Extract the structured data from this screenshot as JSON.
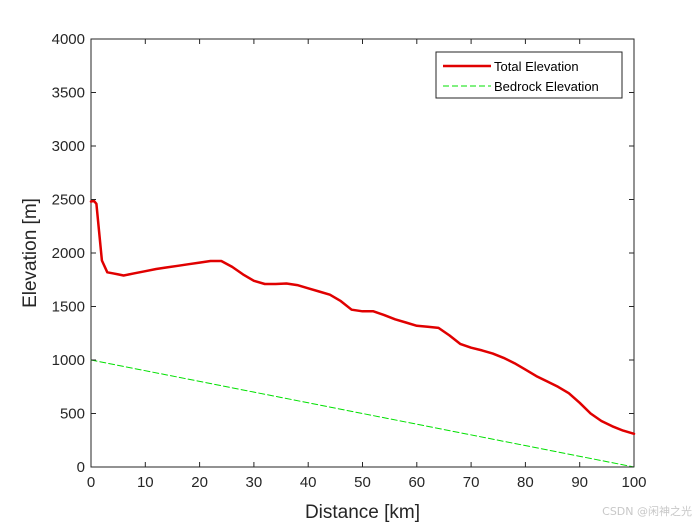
{
  "chart_data": {
    "type": "line",
    "title": "",
    "xlabel": "Distance [km]",
    "ylabel": "Elevation [m]",
    "xlim": [
      0,
      100
    ],
    "ylim": [
      0,
      4000
    ],
    "xticks": [
      0,
      10,
      20,
      30,
      40,
      50,
      60,
      70,
      80,
      90,
      100
    ],
    "yticks": [
      0,
      500,
      1000,
      1500,
      2000,
      2500,
      3000,
      3500,
      4000
    ],
    "grid": false,
    "legend_position": "top-right",
    "series": [
      {
        "name": "Total Elevation",
        "color": "#e00000",
        "style": "solid",
        "x": [
          0,
          0.5,
          1,
          1.5,
          2,
          3,
          4,
          5,
          6,
          8,
          10,
          12,
          14,
          16,
          18,
          20,
          22,
          24,
          26,
          28,
          30,
          32,
          34,
          36,
          38,
          40,
          42,
          44,
          46,
          48,
          50,
          52,
          54,
          56,
          58,
          60,
          62,
          64,
          66,
          68,
          70,
          72,
          74,
          76,
          78,
          80,
          82,
          84,
          86,
          88,
          90,
          92,
          94,
          96,
          98,
          100
        ],
        "y": [
          2480,
          2490,
          2460,
          2200,
          1930,
          1820,
          1810,
          1800,
          1790,
          1810,
          1830,
          1850,
          1865,
          1880,
          1895,
          1910,
          1925,
          1925,
          1870,
          1800,
          1740,
          1710,
          1710,
          1715,
          1700,
          1670,
          1640,
          1610,
          1550,
          1470,
          1455,
          1455,
          1420,
          1380,
          1350,
          1320,
          1310,
          1300,
          1230,
          1150,
          1115,
          1090,
          1060,
          1020,
          970,
          910,
          850,
          800,
          750,
          690,
          600,
          500,
          430,
          380,
          340,
          310
        ]
      },
      {
        "name": "Bedrock Elevation",
        "color": "#00e000",
        "style": "dashed",
        "x": [
          0,
          100
        ],
        "y": [
          1000,
          0
        ]
      }
    ]
  },
  "watermark": "CSDN @闲神之光"
}
